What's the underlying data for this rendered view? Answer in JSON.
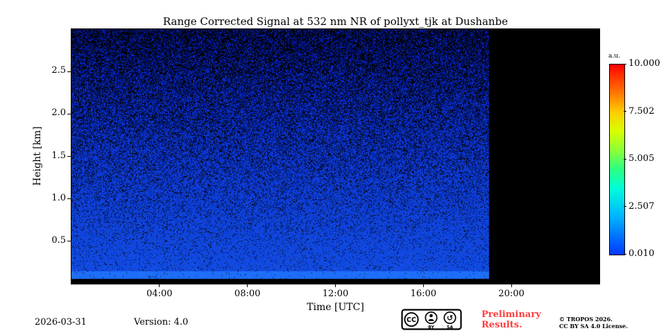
{
  "chart_data": {
    "type": "heatmap",
    "title": "Range Corrected Signal at 532 nm NR of pollyxt_tjk at Dushanbe",
    "xlabel": "Time [UTC]",
    "ylabel": "Height [km]",
    "xlim_hours": [
      0,
      24
    ],
    "ylim_km": [
      0,
      3.0
    ],
    "x_ticks": [
      {
        "hour": 4,
        "label": "04:00"
      },
      {
        "hour": 8,
        "label": "08:00"
      },
      {
        "hour": 12,
        "label": "12:00"
      },
      {
        "hour": 16,
        "label": "16:00"
      },
      {
        "hour": 20,
        "label": "20:00"
      }
    ],
    "y_ticks_km": [
      0.5,
      1.0,
      1.5,
      2.0,
      2.5
    ],
    "data_end_hour": 19.0,
    "no_data_color": "#000000",
    "colorbar": {
      "label": "a.u.",
      "min": 0.01,
      "max": 10.0,
      "ticks": [
        10.0,
        7.502,
        5.005,
        2.507,
        0.01
      ],
      "colormap": "jet",
      "legend_position": "right"
    },
    "signal_summary": {
      "heights_km": [
        0.05,
        0.1,
        0.3,
        0.5,
        1.0,
        1.5,
        2.0,
        2.5,
        3.0
      ],
      "approx_values_au": [
        1.5,
        1.0,
        0.6,
        0.45,
        0.3,
        0.2,
        0.12,
        0.08,
        0.05
      ],
      "note": "Values estimated from shading: whole scene sits in the deep-blue low end of the 0.010-10.000 a.u. scale, strongest in a thin bright-blue layer near the surface; black speckle (detector noise) density increases with height; all columns after 19:00 UTC are black (no data)."
    }
  },
  "footer": {
    "date": "2026-03-31",
    "version": "Version: 4.0",
    "preliminary": "Preliminary Results.",
    "preliminary_color": "#ff3d3d",
    "copyright_line1": "© TROPOS 2026.",
    "copyright_line2": "CC BY SA 4.0 License.",
    "badge": {
      "cc": "CC",
      "by": "BY",
      "sa": "SA"
    }
  }
}
